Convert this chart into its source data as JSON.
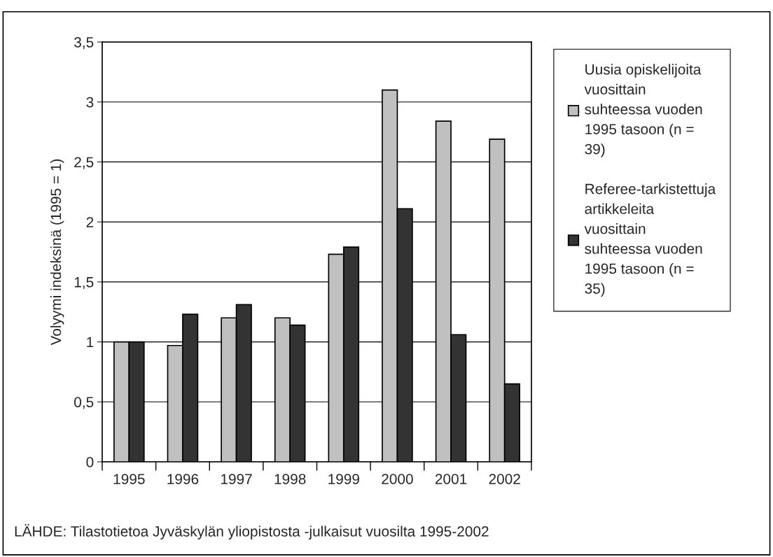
{
  "chart_data": {
    "type": "bar",
    "ylabel": "Volyymi indeksinä (1995 = 1)",
    "categories": [
      "1995",
      "1996",
      "1997",
      "1998",
      "1999",
      "2000",
      "2001",
      "2002"
    ],
    "series": [
      {
        "name": "Uusia opiskelijoita vuosittain suhteessa vuoden 1995 tasoon (n = 39)",
        "color": "#c0c0c0",
        "values": [
          1.0,
          0.97,
          1.2,
          1.2,
          1.73,
          3.1,
          2.84,
          2.69
        ]
      },
      {
        "name": "Referee-tarkistettuja artikkeleita vuosittain suhteessa vuoden 1995 tasoon (n = 35)",
        "color": "#333333",
        "values": [
          1.0,
          1.23,
          1.31,
          1.14,
          1.79,
          2.11,
          1.06,
          0.65
        ]
      }
    ],
    "ylim": [
      0,
      3.5
    ],
    "yticks": [
      0,
      {
        "value": 0.5,
        "label": "0,5"
      },
      1,
      {
        "value": 1.5,
        "label": "1,5"
      },
      2,
      {
        "value": 2.5,
        "label": "2,5"
      },
      3,
      {
        "value": 3.5,
        "label": "3,5"
      }
    ],
    "grid": "y",
    "legend": "right",
    "annotations": [
      "LÄHDE: Tilastotietoa Jyväskylän yliopistosta -julkaisut vuosilta 1995-2002"
    ]
  }
}
